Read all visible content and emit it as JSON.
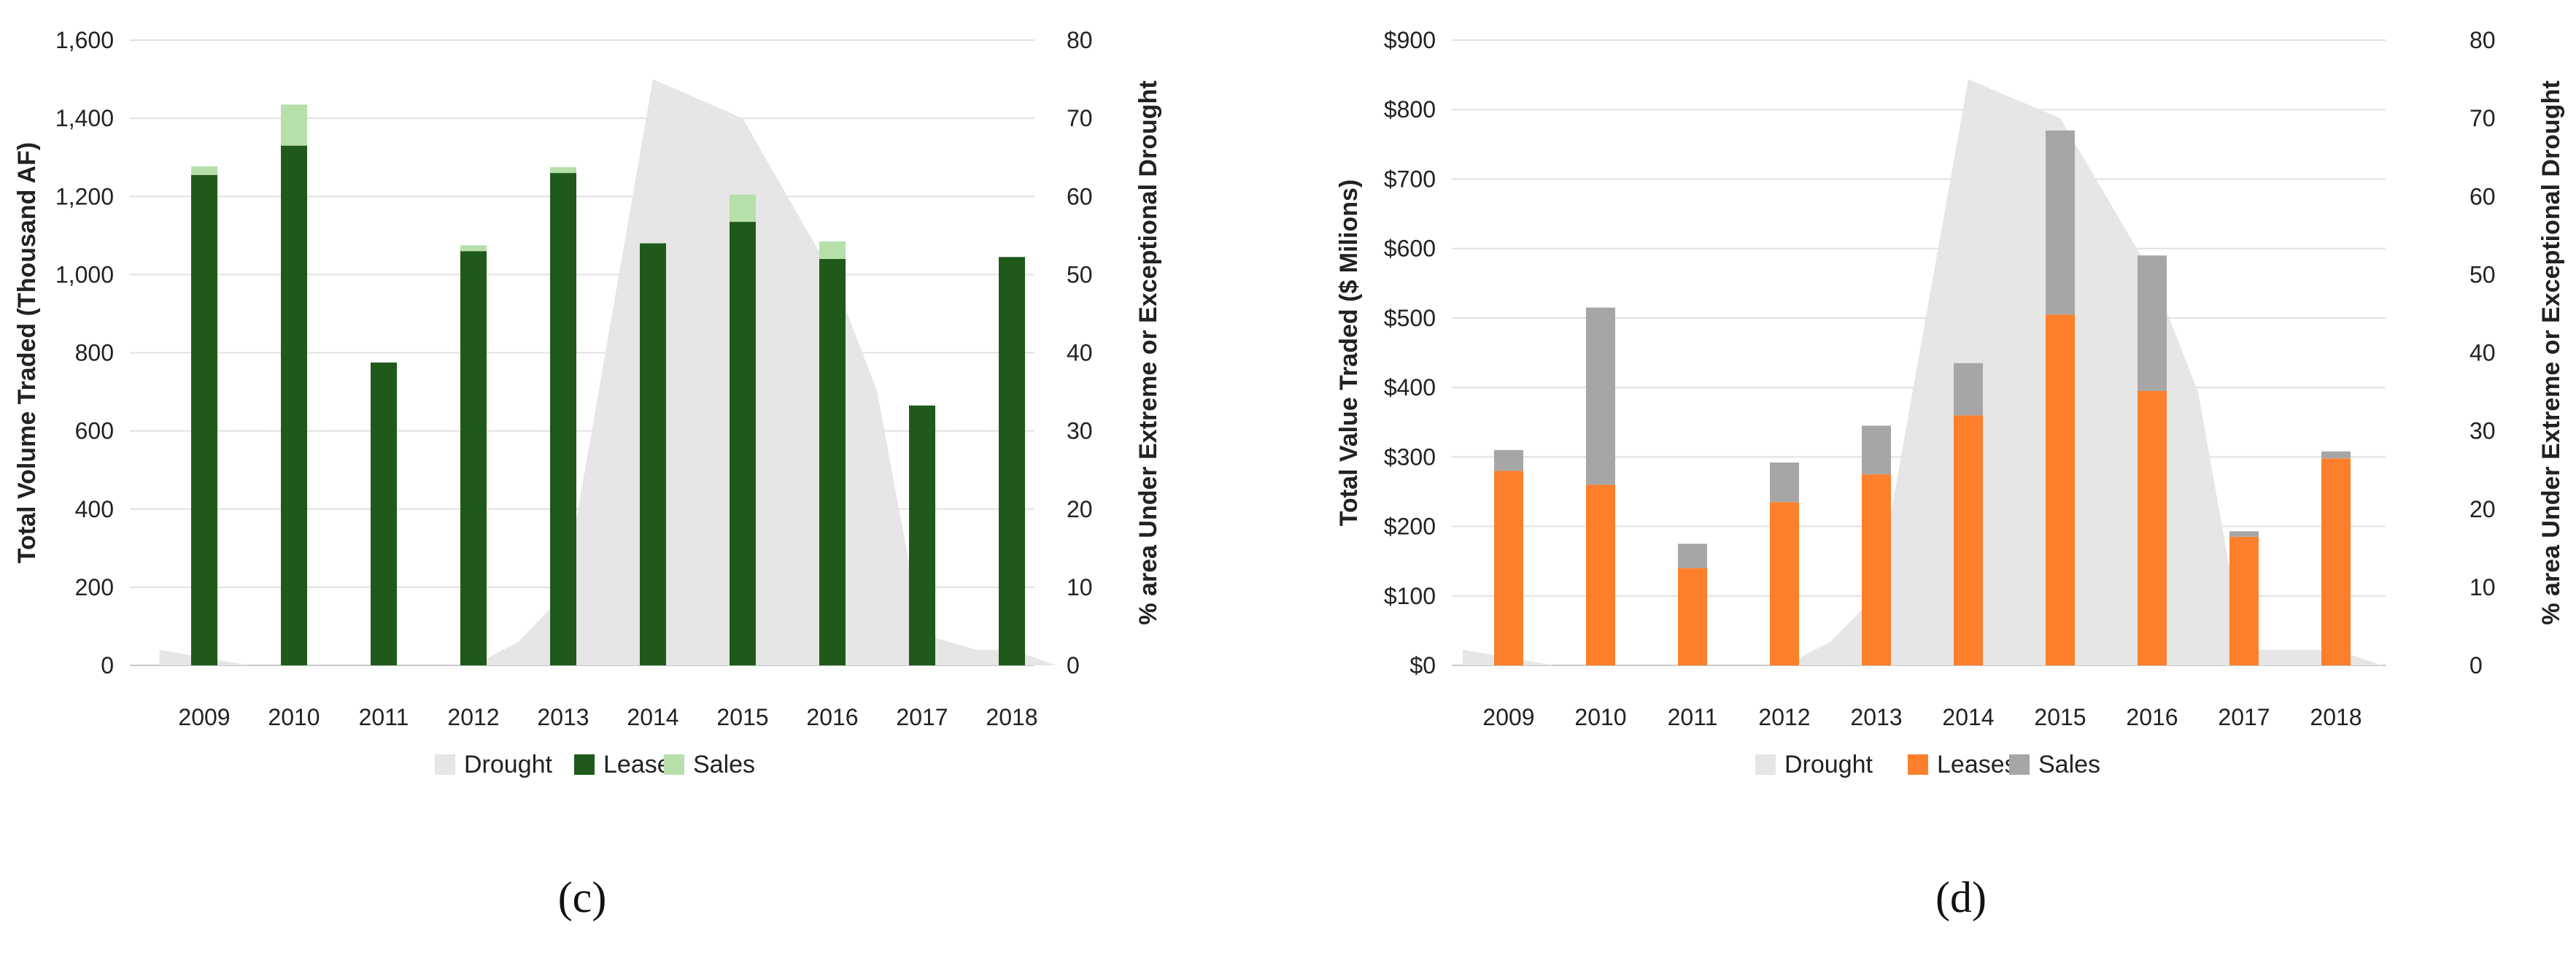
{
  "chart_data": [
    {
      "type": "bar",
      "panel_label": "c",
      "panel_label_text": "(c)",
      "categories": [
        "2009",
        "2010",
        "2011",
        "2012",
        "2013",
        "2014",
        "2015",
        "2016",
        "2017",
        "2018"
      ],
      "series": [
        {
          "name": "Leases",
          "color": "#1f5a1a",
          "values": [
            1255,
            1330,
            775,
            1060,
            1260,
            1080,
            1135,
            1040,
            665,
            1045
          ]
        },
        {
          "name": "Sales",
          "color": "#b6dfaa",
          "values": [
            22,
            105,
            0,
            15,
            15,
            0,
            70,
            45,
            0,
            0
          ]
        }
      ],
      "drought": {
        "name": "Drought",
        "color": "#e6e6e6",
        "x": [
          -0.5,
          0,
          0.5,
          1,
          2,
          3,
          3.5,
          4,
          5,
          6,
          7,
          7.5,
          8,
          8.6,
          9,
          9.5
        ],
        "values": [
          2,
          1,
          0,
          0,
          0,
          0,
          3,
          9,
          75,
          70,
          50,
          35,
          4,
          2,
          2,
          0
        ]
      },
      "y_left": {
        "label": "Total Volume Traded (Thousand AF)",
        "range": [
          0,
          1600
        ],
        "ticks": [
          "0",
          "200",
          "400",
          "600",
          "800",
          "1,000",
          "1,200",
          "1,400",
          "1,600"
        ]
      },
      "y_right": {
        "label": "% area Under Extreme or Exceptional  Drought",
        "range": [
          0,
          80
        ],
        "ticks": [
          "0",
          "10",
          "20",
          "30",
          "40",
          "50",
          "60",
          "70",
          "80"
        ]
      },
      "legend": [
        "Drought",
        "Leases",
        "Sales"
      ],
      "grid": true
    },
    {
      "type": "bar",
      "panel_label": "d",
      "panel_label_text": "(d)",
      "categories": [
        "2009",
        "2010",
        "2011",
        "2012",
        "2013",
        "2014",
        "2015",
        "2016",
        "2017",
        "2018"
      ],
      "series": [
        {
          "name": "Leases",
          "color": "#fe7f2b",
          "values": [
            280,
            260,
            140,
            235,
            275,
            360,
            505,
            395,
            185,
            298
          ]
        },
        {
          "name": "Sales",
          "color": "#a6a6a6",
          "values": [
            30,
            255,
            35,
            57,
            70,
            75,
            265,
            195,
            8,
            10
          ]
        }
      ],
      "drought": {
        "name": "Drought",
        "color": "#e6e6e6",
        "x": [
          -0.5,
          0,
          0.5,
          1,
          2,
          3,
          3.5,
          4,
          5,
          6,
          7,
          7.5,
          8,
          8.6,
          9,
          9.5
        ],
        "values": [
          2,
          1,
          0,
          0,
          0,
          0,
          3,
          9,
          75,
          70,
          50,
          35,
          2,
          2,
          2,
          0
        ]
      },
      "y_left": {
        "label": "Total Value Traded  ($ Milions)",
        "range": [
          0,
          900
        ],
        "ticks": [
          "$0",
          "$100",
          "$200",
          "$300",
          "$400",
          "$500",
          "$600",
          "$700",
          "$800",
          "$900"
        ]
      },
      "y_right": {
        "label": "% area Under Extreme or Exceptional  Drought",
        "range": [
          0,
          80
        ],
        "ticks": [
          "0",
          "10",
          "20",
          "30",
          "40",
          "50",
          "60",
          "70",
          "80"
        ]
      },
      "legend": [
        "Drought",
        "Leases",
        "Sales"
      ],
      "grid": true
    }
  ]
}
